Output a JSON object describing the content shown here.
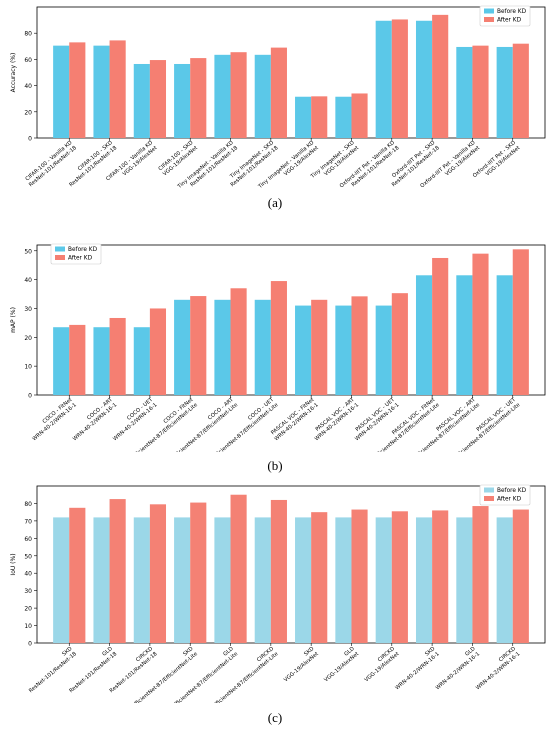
{
  "colors": {
    "before": "#5bc8e8",
    "after": "#f57f72",
    "before_c": "#9bd7e8",
    "after_c": "#f48174"
  },
  "captions": [
    "(a)",
    "(b)",
    "(c)"
  ],
  "chart_data": [
    {
      "type": "bar",
      "ylabel": "Accuracy (%)",
      "ylim": [
        0,
        100
      ],
      "yticks": [
        0,
        20,
        40,
        60,
        80
      ],
      "legend_position": "top-right",
      "categories": [
        [
          "CIFAR-100 - Vanilla KD",
          "ResNet-101/ResNet-18"
        ],
        [
          "CIFAR-100 - SKD",
          "ResNet-101/ResNet-18"
        ],
        [
          "CIFAR-100 - Vanilla KD",
          "VGG-19/AlexNet"
        ],
        [
          "CIFAR-100 - SKD",
          "VGG-19/AlexNet"
        ],
        [
          "Tiny ImageNet - Vanilla KD",
          "ResNet-101/ResNet-18"
        ],
        [
          "Tiny ImageNet - SKD",
          "ResNet-101/ResNet-18"
        ],
        [
          "Tiny ImageNet - Vanilla KD",
          "VGG-19/AlexNet"
        ],
        [
          "Tiny ImageNet - SKD",
          "VGG-19/AlexNet"
        ],
        [
          "Oxford-IIIT Pet - Vanilla KD",
          "ResNet-101/ResNet-18"
        ],
        [
          "Oxford-IIIT Pet - SKD",
          "ResNet-101/ResNet-18"
        ],
        [
          "Oxford-IIIT Pet - Vanilla KD",
          "VGG-19/AlexNet"
        ],
        [
          "Oxford-IIIT Pet - SKD",
          "VGG-19/AlexNet"
        ]
      ],
      "series": [
        {
          "name": "Before KD",
          "values": [
            70.5,
            70.5,
            56.5,
            56.5,
            63.5,
            63.5,
            31.5,
            31.5,
            89.5,
            89.5,
            69.5,
            69.5
          ]
        },
        {
          "name": "After KD",
          "values": [
            73,
            74.5,
            59.5,
            61,
            65.5,
            69,
            31.8,
            34,
            90.5,
            94,
            70.5,
            72
          ]
        }
      ]
    },
    {
      "type": "bar",
      "ylabel": "mAP (%)",
      "ylim": [
        0,
        52
      ],
      "yticks": [
        0,
        10,
        20,
        30,
        40,
        50
      ],
      "legend_position": "top-left",
      "categories": [
        [
          "COCO - FitNet",
          "WRN-40-2/WRN-16-1"
        ],
        [
          "COCO - ART",
          "WRN-40-2/WRN-16-1"
        ],
        [
          "COCO - UET",
          "WRN-40-2/WRN-16-1"
        ],
        [
          "COCO - FitNet",
          "EfficientNet-B7/EfficientNet-Lite"
        ],
        [
          "COCO - ART",
          "EfficientNet-B7/EfficientNet-Lite"
        ],
        [
          "COCO - UET",
          "EfficientNet-B7/EfficientNet-Lite"
        ],
        [
          "PASCAL VOC - FitNet",
          "WRN-40-2/WRN-16-1"
        ],
        [
          "PASCAL VOC - ART",
          "WRN-40-2/WRN-16-1"
        ],
        [
          "PASCAL VOC - UET",
          "WRN-40-2/WRN-16-1"
        ],
        [
          "PASCAL VOC - FitNet",
          "EfficientNet-B7/EfficientNet-Lite"
        ],
        [
          "PASCAL VOC - ART",
          "EfficientNet-B7/EfficientNet-Lite"
        ],
        [
          "PASCAL VOC - UET",
          "EfficientNet-B7/EfficientNet-Lite"
        ]
      ],
      "series": [
        {
          "name": "Before KD",
          "values": [
            23.5,
            23.5,
            23.5,
            33,
            33,
            33,
            31,
            31,
            31,
            41.5,
            41.5,
            41.5
          ]
        },
        {
          "name": "After KD",
          "values": [
            24.3,
            26.7,
            30,
            34.3,
            37,
            39.5,
            33,
            34.2,
            35.3,
            47.5,
            49,
            50.5
          ]
        }
      ]
    },
    {
      "type": "bar",
      "ylabel": "IoU (%)",
      "ylim": [
        0,
        90
      ],
      "yticks": [
        0,
        10,
        20,
        30,
        40,
        50,
        60,
        70,
        80
      ],
      "legend_position": "top-right",
      "categories": [
        [
          "SKD",
          "ResNet-101/ResNet-18"
        ],
        [
          "GLD",
          "ResNet-101/ResNet-18"
        ],
        [
          "CIRCKD",
          "ResNet-101/ResNet-18"
        ],
        [
          "SKD",
          "EfficientNet-B7/EfficientNet-Lite"
        ],
        [
          "GLD",
          "EfficientNet-B7/EfficientNet-Lite"
        ],
        [
          "CIRCKD",
          "EfficientNet-B7/EfficientNet-Lite"
        ],
        [
          "SKD",
          "VGG-19/AlexNet"
        ],
        [
          "GLD",
          "VGG-19/AlexNet"
        ],
        [
          "CIRCKD",
          "VGG-19/AlexNet"
        ],
        [
          "SKD",
          "WRN-40-2/WRN-16-1"
        ],
        [
          "GLD",
          "WRN-40-2/WRN-16-1"
        ],
        [
          "CIRCKD",
          "WRN-40-2/WRN-16-1"
        ]
      ],
      "series": [
        {
          "name": "Before KD",
          "values": [
            72,
            72,
            72,
            72,
            72,
            72,
            72,
            72,
            72,
            72,
            72,
            72
          ]
        },
        {
          "name": "After KD",
          "values": [
            77.5,
            82.5,
            79.5,
            80.5,
            85,
            82,
            75,
            76.5,
            75.5,
            76,
            78.5,
            76.5
          ]
        }
      ]
    }
  ]
}
